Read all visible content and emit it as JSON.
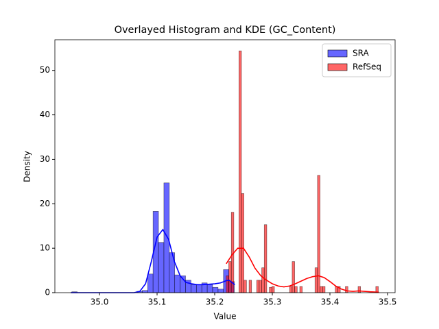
{
  "chart_data": {
    "type": "histogram",
    "title": "Overlayed Histogram and KDE (GC_Content)",
    "xlabel": "Value",
    "ylabel": "Density",
    "xlim": [
      34.9226,
      35.5131
    ],
    "ylim": [
      0,
      56.9
    ],
    "xticks": [
      {
        "value": 35.0,
        "label": "35.0"
      },
      35.1,
      35.2,
      35.3,
      35.4,
      35.5
    ],
    "yticks": [
      0,
      10,
      20,
      30,
      40,
      50
    ],
    "legend": "upper right",
    "opacity": 0.6,
    "series": [
      {
        "name": "SRA",
        "color": "#0000ff",
        "bins": [
          34.952,
          34.9614,
          34.9708,
          34.9802,
          34.9896,
          34.999,
          35.0084,
          35.0178,
          35.0272,
          35.0366,
          35.046,
          35.0554,
          35.0648,
          35.0742,
          35.0836,
          35.093,
          35.1024,
          35.1118,
          35.1212,
          35.1306,
          35.14,
          35.1494,
          35.1588,
          35.1682,
          35.1776,
          35.187,
          35.1964,
          35.2058,
          35.2152,
          35.2246,
          35.234
        ],
        "counts": [
          0.2,
          0,
          0,
          0,
          0,
          0,
          0,
          0,
          0,
          0,
          0,
          0,
          0.3,
          0.5,
          4.2,
          18.3,
          11.3,
          24.7,
          9.0,
          4.0,
          3.8,
          2.8,
          1.8,
          1.8,
          2.2,
          1.8,
          1.2,
          0.8,
          5.2,
          2.5
        ],
        "kde_x": [
          34.95,
          35.0,
          35.06,
          35.07,
          35.08,
          35.09,
          35.1,
          35.11,
          35.12,
          35.13,
          35.14,
          35.15,
          35.16,
          35.17,
          35.18,
          35.19,
          35.2,
          35.21,
          35.22,
          35.225,
          35.235
        ],
        "kde_y": [
          0,
          0,
          0,
          0.3,
          2,
          7,
          12.5,
          14.2,
          12,
          7,
          3.8,
          2.3,
          2,
          1.8,
          1.8,
          1.9,
          2,
          2.2,
          2.7,
          2.8,
          1.8
        ]
      },
      {
        "name": "RefSeq",
        "color": "#ff0000",
        "bins": [
          35.22,
          35.2244,
          35.2288,
          35.2332,
          35.2376,
          35.242,
          35.2464,
          35.2508,
          35.2552,
          35.2596,
          35.264,
          35.2684,
          35.2728,
          35.2772,
          35.2816,
          35.286,
          35.2904,
          35.2948,
          35.2992,
          35.3036,
          35.308,
          35.3124,
          35.3168,
          35.3212,
          35.3256,
          35.33,
          35.3344,
          35.3388,
          35.3432,
          35.3476,
          35.352,
          35.3564,
          35.3608,
          35.3652,
          35.3696,
          35.374,
          35.3784,
          35.3828,
          35.3872,
          35.3916,
          35.396,
          35.4004,
          35.4048,
          35.4092,
          35.4136,
          35.418,
          35.4224,
          35.4268,
          35.4312,
          35.4356,
          35.44,
          35.4444,
          35.4488,
          35.4532,
          35.4576,
          35.462,
          35.4664,
          35.4708,
          35.4752,
          35.4796,
          35.484
        ],
        "counts": [
          3.8,
          7.0,
          18.1,
          0,
          0,
          54.4,
          22.3,
          2.8,
          0,
          2.8,
          0,
          0,
          2.8,
          2.8,
          5.6,
          15.3,
          0,
          1.2,
          1.4,
          0,
          0,
          0,
          0,
          0,
          0,
          1.4,
          7.0,
          1.4,
          0,
          1.4,
          0,
          0,
          0,
          0,
          0,
          5.6,
          26.4,
          1.4,
          1.4,
          0,
          0,
          0,
          0,
          1.4,
          1.4,
          0,
          0,
          1.4,
          0,
          0,
          0,
          0,
          1.4,
          0,
          0,
          0,
          0,
          0,
          0,
          1.4
        ],
        "kde_x": [
          35.22,
          35.23,
          35.24,
          35.25,
          35.26,
          35.27,
          35.28,
          35.29,
          35.3,
          35.31,
          35.32,
          35.33,
          35.34,
          35.35,
          35.36,
          35.37,
          35.38,
          35.39,
          35.4,
          35.41,
          35.42,
          35.43,
          35.44,
          35.45,
          35.46,
          35.47,
          35.485
        ],
        "kde_y": [
          6.5,
          8.5,
          10,
          10,
          8,
          5.5,
          3.8,
          2.8,
          2,
          1.5,
          1.3,
          1.5,
          2,
          2.6,
          3.2,
          3.6,
          3.8,
          3.4,
          2.5,
          1.5,
          0.8,
          0.4,
          0.3,
          0.4,
          0.3,
          0.2,
          0.1
        ]
      }
    ]
  }
}
